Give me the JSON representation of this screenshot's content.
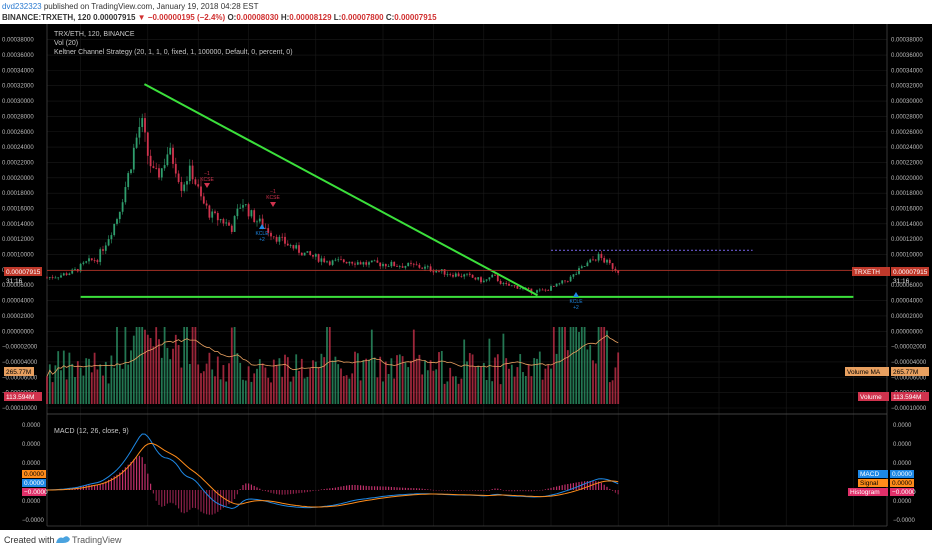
{
  "header": {
    "user": "dvd232323",
    "published_text": "published on TradingView.com, January 19, 2018 04:28 EST",
    "symbol_line": "BINANCE:TRXETH, 120",
    "last": "0.00007915",
    "change": "−0.00000195 (−2.4%)",
    "o_label": "O:",
    "o": "0.00008030",
    "h_label": "H:",
    "h": "0.00008129",
    "l_label": "L:",
    "l": "0.00007800",
    "c_label": "C:",
    "c": "0.00007915"
  },
  "legend": {
    "line1": "TRX/ETH, 120, BINANCE",
    "line2": "Vol (20)",
    "line3": "Keltner Channel Strategy (20, 1, 1, 0, fixed, 1, 100000, Default, 0, percent, 0)",
    "macd": "MACD (12, 26, close, 9)"
  },
  "badges": {
    "price_left": "0.00007915",
    "countdown": "31:16",
    "price_right_label": "TRXETH",
    "price_right": "0.00007915",
    "vol_ma_left": "265.77M",
    "vol_ma_right_label": "Volume MA",
    "vol_ma_right": "265.77M",
    "vol_left": "113.594M",
    "vol_right_label": "Volume",
    "vol_right": "113.594M",
    "macd_left": "0.0000",
    "signal_left": "0.0000",
    "hist_left": "−0.0000",
    "macd_right_label": "MACD",
    "macd_right": "0.0000",
    "signal_right_label": "Signal",
    "signal_right": "0.0000",
    "hist_right_label": "Histogram",
    "hist_right": "−0.0000"
  },
  "signals": [
    {
      "text1": "−1",
      "text2": "KCSE"
    },
    {
      "text1": "KCLE",
      "text2": "+2"
    },
    {
      "text1": "−1",
      "text2": "KCSE"
    },
    {
      "text1": "KCLE",
      "text2": "+2"
    }
  ],
  "footer": {
    "created_with": "Created with",
    "brand": "TradingView"
  },
  "colors": {
    "background": "#000000",
    "up": "#2f9e6d",
    "down": "#d0334e",
    "trendline": "#3be03b",
    "resistance": "#6a5acd",
    "macd": "#1e88e5",
    "signal": "#ff8c1a",
    "price_line": "#c0392b"
  },
  "chart_data": {
    "type": "candlestick",
    "symbol": "TRX/ETH",
    "interval": "120",
    "exchange": "BINANCE",
    "price_axis_ticks": [
      "0.00038000",
      "0.00036000",
      "0.00034000",
      "0.00032000",
      "0.00030000",
      "0.00028000",
      "0.00026000",
      "0.00024000",
      "0.00022000",
      "0.00020000",
      "0.00018000",
      "0.00016000",
      "0.00014000",
      "0.00012000",
      "0.00010000",
      "0.00008000",
      "0.00006000",
      "0.00004000",
      "0.00002000",
      "0.00000000",
      "−0.00002000",
      "−0.00004000",
      "−0.00006000",
      "−0.00008000",
      "−0.00010000"
    ],
    "ylim_price": [
      -0.0001,
      0.00039
    ],
    "macd_axis_ticks": [
      "0.0000",
      "0.0000",
      "0.0000",
      "0.0000",
      "0.0000",
      "−0.0000"
    ],
    "x_ticks": [
      "3",
      "5",
      "13:00",
      "8",
      "10",
      "12",
      "13:00",
      "15",
      "17",
      "19",
      "13:00",
      "22",
      "24",
      "26"
    ],
    "x_tick_days": [
      3,
      5,
      6.5,
      8,
      10,
      12,
      13.5,
      15,
      17,
      19,
      20.5,
      22,
      24,
      26
    ],
    "xlim_days": [
      2,
      27
    ],
    "price_path": [
      [
        2.0,
        7e-05
      ],
      [
        2.4,
        7.3e-05
      ],
      [
        2.8,
        7.8e-05
      ],
      [
        3.2,
        9e-05
      ],
      [
        3.5,
        9.5e-05
      ],
      [
        3.8,
        0.00012
      ],
      [
        4.1,
        0.00015
      ],
      [
        4.4,
        0.0002
      ],
      [
        4.6,
        0.00024
      ],
      [
        4.8,
        0.000275
      ],
      [
        5.0,
        0.00023
      ],
      [
        5.2,
        0.0002
      ],
      [
        5.4,
        0.00021
      ],
      [
        5.6,
        0.000235
      ],
      [
        5.8,
        0.00022
      ],
      [
        6.0,
        0.00019
      ],
      [
        6.3,
        0.00021
      ],
      [
        6.6,
        0.00017
      ],
      [
        6.9,
        0.00015
      ],
      [
        7.2,
        0.000145
      ],
      [
        7.5,
        0.000135
      ],
      [
        7.8,
        0.00017
      ],
      [
        8.1,
        0.00015
      ],
      [
        8.5,
        0.000135
      ],
      [
        8.9,
        0.00012
      ],
      [
        9.3,
        0.00011
      ],
      [
        9.7,
        0.0001
      ],
      [
        10.1,
        9.5e-05
      ],
      [
        10.5,
        9e-05
      ],
      [
        11.0,
        9.2e-05
      ],
      [
        11.5,
        8.8e-05
      ],
      [
        12.0,
        8.8e-05
      ],
      [
        12.5,
        8.6e-05
      ],
      [
        13.0,
        8.5e-05
      ],
      [
        13.5,
        8e-05
      ],
      [
        14.0,
        7.5e-05
      ],
      [
        14.5,
        7.2e-05
      ],
      [
        15.0,
        6.5e-05
      ],
      [
        15.3,
        7.2e-05
      ],
      [
        15.6,
        6e-05
      ],
      [
        16.0,
        5.8e-05
      ],
      [
        16.4,
        5.2e-05
      ],
      [
        16.8,
        5.3e-05
      ],
      [
        17.2,
        6e-05
      ],
      [
        17.6,
        7e-05
      ],
      [
        18.0,
        8.5e-05
      ],
      [
        18.4,
        9.8e-05
      ],
      [
        18.7,
        8.8e-05
      ],
      [
        19.0,
        7.9e-05
      ]
    ],
    "trendline": [
      [
        4.9,
        0.000322
      ],
      [
        16.6,
        4.68e-05
      ]
    ],
    "support": [
      [
        3.0,
        4.48e-05
      ],
      [
        26.0,
        4.48e-05
      ]
    ],
    "resistance": [
      [
        17.0,
        0.0001055
      ],
      [
        23.0,
        0.0001055
      ]
    ],
    "last_price": 7.915e-05,
    "grid": true
  }
}
